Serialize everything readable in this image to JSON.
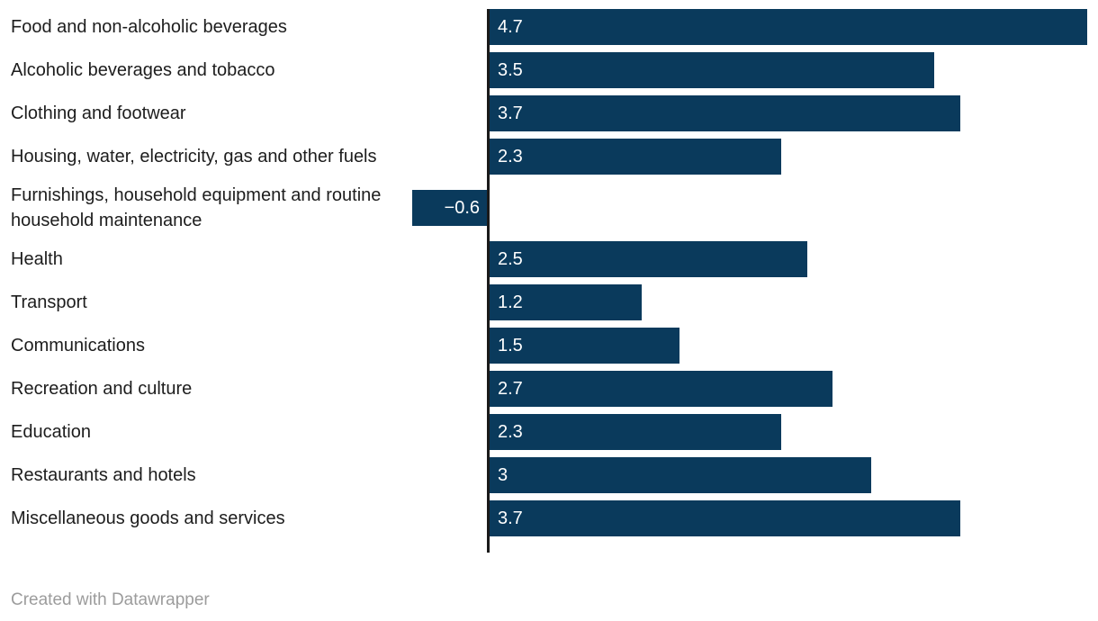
{
  "chart_data": {
    "type": "bar",
    "orientation": "horizontal",
    "title": "",
    "categories": [
      "Food and non-alcoholic beverages",
      "Alcoholic beverages and tobacco",
      "Clothing and footwear",
      "Housing, water, electricity, gas and other fuels",
      "Furnishings, household equipment and routine household maintenance",
      "Health",
      "Transport",
      "Communications",
      "Recreation and culture",
      "Education",
      "Restaurants and hotels",
      "Miscellaneous goods and services"
    ],
    "values": [
      4.7,
      3.5,
      3.7,
      2.3,
      -0.6,
      2.5,
      1.2,
      1.5,
      2.7,
      2.3,
      3,
      3.7
    ],
    "value_labels": [
      "4.7",
      "3.5",
      "3.7",
      "2.3",
      "−0.6",
      "2.5",
      "1.2",
      "1.5",
      "2.7",
      "2.3",
      "3",
      "3.7"
    ],
    "xlim": [
      -0.6,
      4.7
    ],
    "grid": "off",
    "legend": "none",
    "value_label_position": "inside-bar-end-near-axis",
    "bar_color": "#0a3a5c",
    "axis_color": "#1a1a1a"
  },
  "colors": {
    "background": "#ffffff",
    "category_text": "#1d1d1d",
    "value_text": "#ffffff",
    "credit_text": "#9c9c9c"
  },
  "footer": {
    "credit": "Created with Datawrapper"
  }
}
